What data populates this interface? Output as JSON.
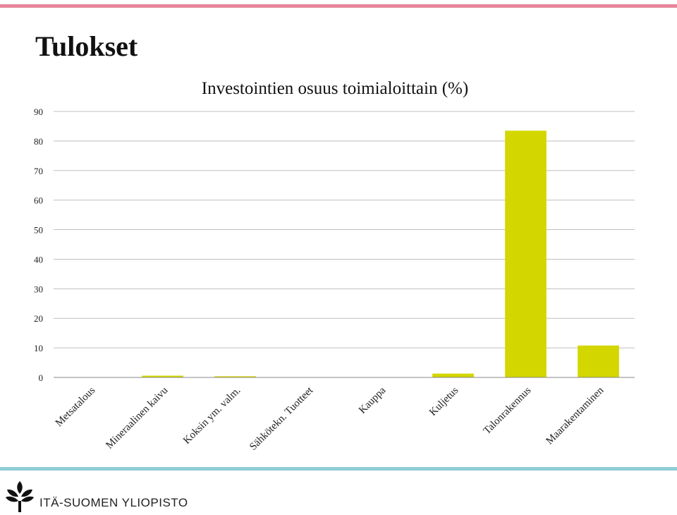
{
  "slide": {
    "title": "Tulokset",
    "footer": "ITÄ-SUOMEN YLIOPISTO",
    "top_bar_color": "#e8859a",
    "bottom_bar_color": "#91ccd6"
  },
  "chart_data": {
    "type": "bar",
    "title": "Investointien osuus toimialoittain (%)",
    "xlabel": "",
    "ylabel": "",
    "categories": [
      "Metsatalous",
      "Mineraalinen kaivu",
      "Koksin ym. valm.",
      "Sähkötekn. Tuotteet",
      "Kauppa",
      "Kuljetus",
      "Talonrakennus",
      "Maarakentaminen"
    ],
    "values": [
      0.1,
      0.6,
      0.4,
      0,
      0,
      1.3,
      83.5,
      10.8
    ],
    "ylim": [
      0,
      90
    ],
    "yticks": [
      0,
      10,
      20,
      30,
      40,
      50,
      60,
      70,
      80,
      90
    ],
    "grid": true,
    "legend": "none",
    "bar_color": "#d4d600"
  }
}
